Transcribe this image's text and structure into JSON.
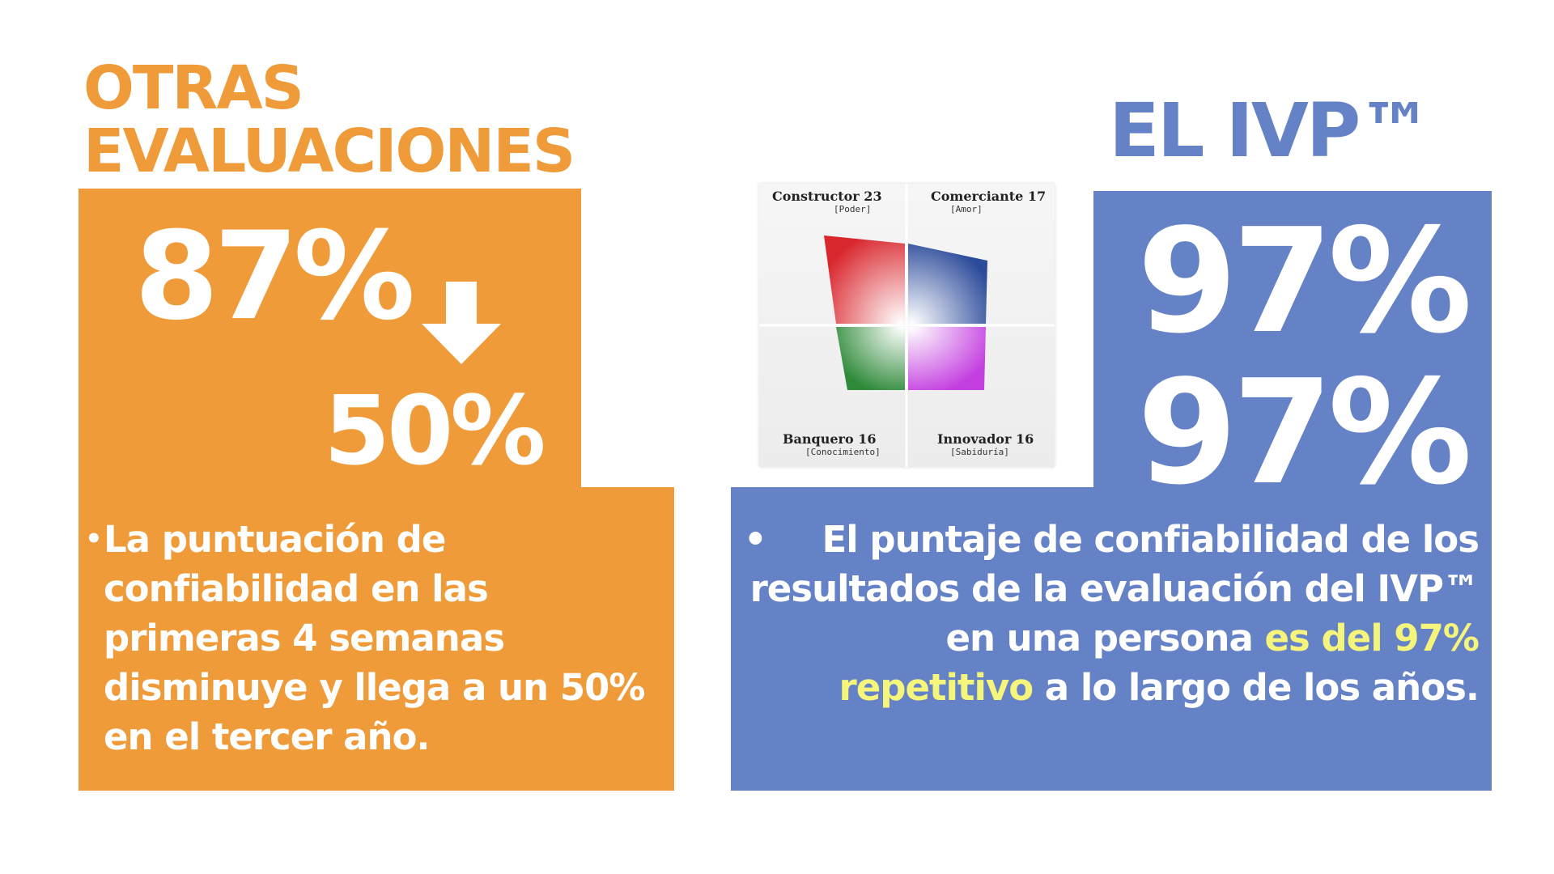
{
  "left": {
    "title_line1": "OTRAS",
    "title_line2": "EVALUACIONES",
    "stat_before": "87%",
    "stat_after": "50%",
    "arrow_icon": "down-arrow-icon",
    "bullet": "•",
    "body": "La puntuación de confiabilidad en las primeras 4 semanas disminuye y llega a un 50% en el tercer año."
  },
  "right": {
    "title": "EL IVP™",
    "stat_a": "97%",
    "stat_b": "97%",
    "bullet": "•",
    "body_part1": "El puntaje de confiabilidad de los resultados de la evaluación del IVP™ en una persona ",
    "body_highlight": "es del 97% repetitivo",
    "body_part2": " a lo largo de los años."
  },
  "quadrant": {
    "top_left_label": "Constructor 23",
    "top_left_sub": "[Poder]",
    "top_right_label": "Comerciante 17",
    "top_right_sub": "[Amor]",
    "bottom_left_label": "Banquero 16",
    "bottom_left_sub": "[Conocimiento]",
    "bottom_right_label": "Innovador 16",
    "bottom_right_sub": "[Sabiduría]"
  },
  "colors": {
    "orange": "#f09b3a",
    "blue": "#6682c7",
    "highlight": "#f4f57a"
  }
}
